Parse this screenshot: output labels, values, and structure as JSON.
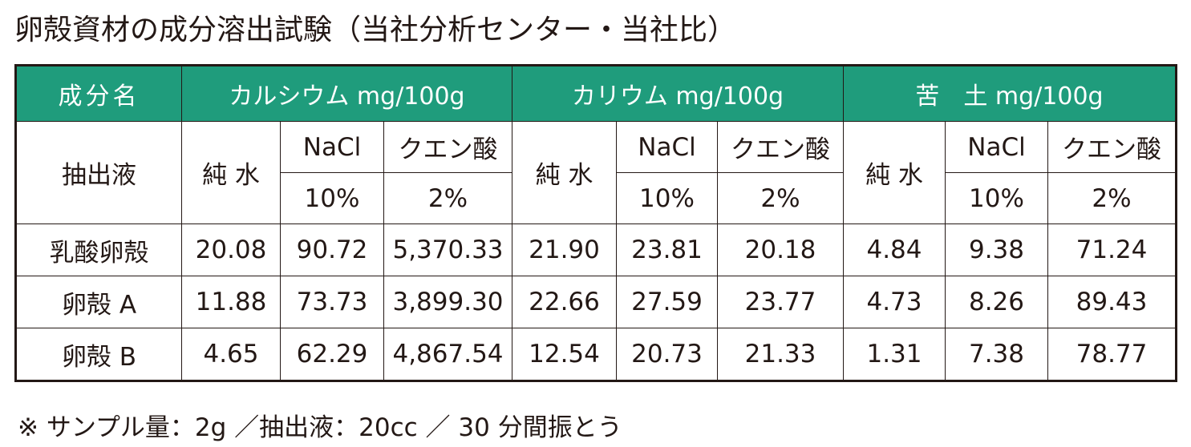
{
  "title": "卵殻資材の成分溶出試験（当社分析センター・当社比）",
  "table": {
    "header": [
      "成分名",
      "カルシウム mg/100g",
      "カリウム mg/100g",
      "苦　土 mg/100g"
    ],
    "extract_label": "抽出液",
    "subheader": [
      [
        "純 水",
        "NaCl",
        "クエン酸",
        "純 水",
        "NaCl",
        "クエン酸",
        "純 水",
        "NaCl",
        "クエン酸"
      ],
      [
        "10%",
        "2%",
        "10%",
        "2%",
        "10%",
        "2%"
      ]
    ],
    "rows": [
      [
        "乳酸卵殻",
        "20.08",
        "90.72",
        "5,370.33",
        "21.90",
        "23.81",
        "20.18",
        "4.84",
        "9.38",
        "71.24"
      ],
      [
        "卵殻 A",
        "11.88",
        "73.73",
        "3,899.30",
        "22.66",
        "27.59",
        "23.77",
        "4.73",
        "8.26",
        "89.43"
      ],
      [
        "卵殻 B",
        "4.65",
        "62.29",
        "4,867.54",
        "12.54",
        "20.73",
        "21.33",
        "1.31",
        "7.38",
        "78.77"
      ]
    ]
  },
  "note": "※ サンプル量：2g ／抽出液：20cc ／ 30 分間振とう"
}
